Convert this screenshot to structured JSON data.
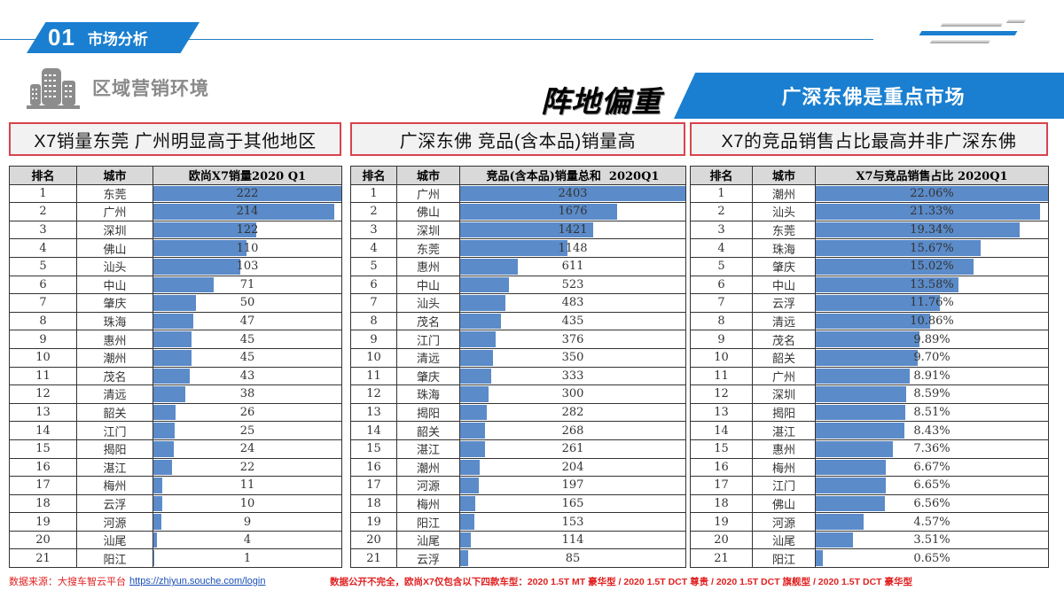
{
  "header": {
    "section_number": "01",
    "section_title": "市场分析",
    "region_title": "区域营销环境",
    "focus_title": "阵地偏重",
    "banner_text": "广深东佛是重点市场"
  },
  "colors": {
    "accent_blue": "#1a7fd0",
    "bar_blue": "#5b8bc9",
    "panel_border_red": "#d9434e",
    "footer_red": "#e02020"
  },
  "panels": [
    {
      "title": "X7销量东莞 广州明显高于其他地区",
      "columns": [
        "排名",
        "城市",
        "欧尚X7销量2020 Q1"
      ],
      "rows": [
        {
          "rank": "1",
          "city": "东莞",
          "value": "222",
          "num": 222
        },
        {
          "rank": "2",
          "city": "广州",
          "value": "214",
          "num": 214
        },
        {
          "rank": "3",
          "city": "深圳",
          "value": "122",
          "num": 122
        },
        {
          "rank": "4",
          "city": "佛山",
          "value": "110",
          "num": 110
        },
        {
          "rank": "5",
          "city": "汕头",
          "value": "103",
          "num": 103
        },
        {
          "rank": "6",
          "city": "中山",
          "value": "71",
          "num": 71
        },
        {
          "rank": "7",
          "city": "肇庆",
          "value": "50",
          "num": 50
        },
        {
          "rank": "8",
          "city": "珠海",
          "value": "47",
          "num": 47
        },
        {
          "rank": "9",
          "city": "惠州",
          "value": "45",
          "num": 45
        },
        {
          "rank": "10",
          "city": "潮州",
          "value": "45",
          "num": 45
        },
        {
          "rank": "11",
          "city": "茂名",
          "value": "43",
          "num": 43
        },
        {
          "rank": "12",
          "city": "清远",
          "value": "38",
          "num": 38
        },
        {
          "rank": "13",
          "city": "韶关",
          "value": "26",
          "num": 26
        },
        {
          "rank": "14",
          "city": "江门",
          "value": "25",
          "num": 25
        },
        {
          "rank": "15",
          "city": "揭阳",
          "value": "24",
          "num": 24
        },
        {
          "rank": "16",
          "city": "湛江",
          "value": "22",
          "num": 22
        },
        {
          "rank": "17",
          "city": "梅州",
          "value": "11",
          "num": 11
        },
        {
          "rank": "18",
          "city": "云浮",
          "value": "10",
          "num": 10
        },
        {
          "rank": "19",
          "city": "河源",
          "value": "9",
          "num": 9
        },
        {
          "rank": "20",
          "city": "汕尾",
          "value": "4",
          "num": 4
        },
        {
          "rank": "21",
          "city": "阳江",
          "value": "1",
          "num": 1
        }
      ]
    },
    {
      "title": "广深东佛 竞品(含本品)销量高",
      "columns": [
        "排名",
        "城市",
        "竞品(含本品)销量总和  2020Q1"
      ],
      "rows": [
        {
          "rank": "1",
          "city": "广州",
          "value": "2403",
          "num": 2403
        },
        {
          "rank": "2",
          "city": "佛山",
          "value": "1676",
          "num": 1676
        },
        {
          "rank": "3",
          "city": "深圳",
          "value": "1421",
          "num": 1421
        },
        {
          "rank": "4",
          "city": "东莞",
          "value": "1148",
          "num": 1148
        },
        {
          "rank": "5",
          "city": "惠州",
          "value": "611",
          "num": 611
        },
        {
          "rank": "6",
          "city": "中山",
          "value": "523",
          "num": 523
        },
        {
          "rank": "7",
          "city": "汕头",
          "value": "483",
          "num": 483
        },
        {
          "rank": "8",
          "city": "茂名",
          "value": "435",
          "num": 435
        },
        {
          "rank": "9",
          "city": "江门",
          "value": "376",
          "num": 376
        },
        {
          "rank": "10",
          "city": "清远",
          "value": "350",
          "num": 350
        },
        {
          "rank": "11",
          "city": "肇庆",
          "value": "333",
          "num": 333
        },
        {
          "rank": "12",
          "city": "珠海",
          "value": "300",
          "num": 300
        },
        {
          "rank": "13",
          "city": "揭阳",
          "value": "282",
          "num": 282
        },
        {
          "rank": "14",
          "city": "韶关",
          "value": "268",
          "num": 268
        },
        {
          "rank": "15",
          "city": "湛江",
          "value": "261",
          "num": 261
        },
        {
          "rank": "16",
          "city": "潮州",
          "value": "204",
          "num": 204
        },
        {
          "rank": "17",
          "city": "河源",
          "value": "197",
          "num": 197
        },
        {
          "rank": "18",
          "city": "梅州",
          "value": "165",
          "num": 165
        },
        {
          "rank": "19",
          "city": "阳江",
          "value": "153",
          "num": 153
        },
        {
          "rank": "20",
          "city": "汕尾",
          "value": "114",
          "num": 114
        },
        {
          "rank": "21",
          "city": "云浮",
          "value": "85",
          "num": 85
        }
      ]
    },
    {
      "title": "X7的竞品销售占比最高并非广深东佛",
      "columns": [
        "排名",
        "城市",
        "X7与竞品销售占比 2020Q1"
      ],
      "rows": [
        {
          "rank": "1",
          "city": "潮州",
          "value": "22.06%",
          "num": 22.06
        },
        {
          "rank": "2",
          "city": "汕头",
          "value": "21.33%",
          "num": 21.33
        },
        {
          "rank": "3",
          "city": "东莞",
          "value": "19.34%",
          "num": 19.34
        },
        {
          "rank": "4",
          "city": "珠海",
          "value": "15.67%",
          "num": 15.67
        },
        {
          "rank": "5",
          "city": "肇庆",
          "value": "15.02%",
          "num": 15.02
        },
        {
          "rank": "6",
          "city": "中山",
          "value": "13.58%",
          "num": 13.58
        },
        {
          "rank": "7",
          "city": "云浮",
          "value": "11.76%",
          "num": 11.76
        },
        {
          "rank": "8",
          "city": "清远",
          "value": "10.86%",
          "num": 10.86
        },
        {
          "rank": "9",
          "city": "茂名",
          "value": "9.89%",
          "num": 9.89
        },
        {
          "rank": "10",
          "city": "韶关",
          "value": "9.70%",
          "num": 9.7
        },
        {
          "rank": "11",
          "city": "广州",
          "value": "8.91%",
          "num": 8.91
        },
        {
          "rank": "12",
          "city": "深圳",
          "value": "8.59%",
          "num": 8.59
        },
        {
          "rank": "13",
          "city": "揭阳",
          "value": "8.51%",
          "num": 8.51
        },
        {
          "rank": "14",
          "city": "湛江",
          "value": "8.43%",
          "num": 8.43
        },
        {
          "rank": "15",
          "city": "惠州",
          "value": "7.36%",
          "num": 7.36
        },
        {
          "rank": "16",
          "city": "梅州",
          "value": "6.67%",
          "num": 6.67
        },
        {
          "rank": "17",
          "city": "江门",
          "value": "6.65%",
          "num": 6.65
        },
        {
          "rank": "18",
          "city": "佛山",
          "value": "6.56%",
          "num": 6.56
        },
        {
          "rank": "19",
          "city": "河源",
          "value": "4.57%",
          "num": 4.57
        },
        {
          "rank": "20",
          "city": "汕尾",
          "value": "3.51%",
          "num": 3.51
        },
        {
          "rank": "21",
          "city": "阳江",
          "value": "0.65%",
          "num": 0.65
        }
      ]
    }
  ],
  "footer": {
    "source_label": "数据来源：大搜车智云平台",
    "source_link": "https://zhiyun.souche.com/login",
    "note": "数据公开不完全，欧尚X7仅包含以下四款车型：2020 1.5T MT 豪华型 / 2020 1.5T DCT 尊贵 / 2020 1.5T DCT 旗舰型 / 2020 1.5T DCT 豪华型"
  }
}
